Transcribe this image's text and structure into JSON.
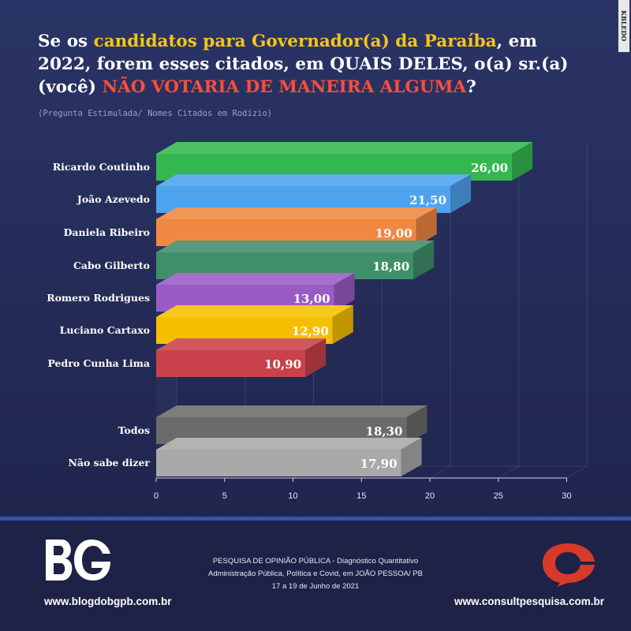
{
  "header": {
    "title_part1": "Se os ",
    "title_highlight1": "candidatos para Governador(a) da Paraíba",
    "title_part2": ", em 2022, forem esses citados, em QUAIS DELES, o(a) sr.(a) (você) ",
    "title_highlight2": "NÃO VOTARIA DE MANEIRA ALGUMA",
    "title_part3": "?",
    "subtitle": "(Pregunta Estimulada/ Nomes Citados em Rodízio)",
    "side_tag": "KBLEDO"
  },
  "chart_data": {
    "type": "bar",
    "orientation": "horizontal",
    "categories": [
      "Ricardo Coutinho",
      "João Azevedo",
      "Daniela Ribeiro",
      "Cabo Gilberto",
      "Romero Rodrigues",
      "Luciano Cartaxo",
      "Pedro Cunha Lima",
      "Todos",
      "Não sabe dizer"
    ],
    "values": [
      26.0,
      21.5,
      19.0,
      18.8,
      13.0,
      12.9,
      10.9,
      18.3,
      17.9
    ],
    "value_labels": [
      "26,00",
      "21,50",
      "19,00",
      "18,80",
      "13,00",
      "12,90",
      "10,90",
      "18,30",
      "17,90"
    ],
    "colors": [
      "#33b84f",
      "#4ea3ef",
      "#ef8840",
      "#3f8f6a",
      "#9a5cc4",
      "#f5bf00",
      "#c9414a",
      "#6b6b6b",
      "#a9a9a9"
    ],
    "xlim": [
      0,
      30
    ],
    "xticks": [
      "0",
      "5",
      "10",
      "15",
      "20",
      "25",
      "30"
    ],
    "grid": true
  },
  "footer": {
    "left_url": "www.blogdobgpb.com.br",
    "right_url": "www.consultpesquisa.com.br",
    "center_line1": "PESQUISA DE OPINIÃO PÚBLICA - Diagnóstico Quantitativo",
    "center_line2": "Administração Pública, Política e Covid, em JOÃO PESSOA/ PB",
    "center_line3": "17 a 19 de Junho de 2021",
    "brand_color_red": "#d63a2a"
  }
}
